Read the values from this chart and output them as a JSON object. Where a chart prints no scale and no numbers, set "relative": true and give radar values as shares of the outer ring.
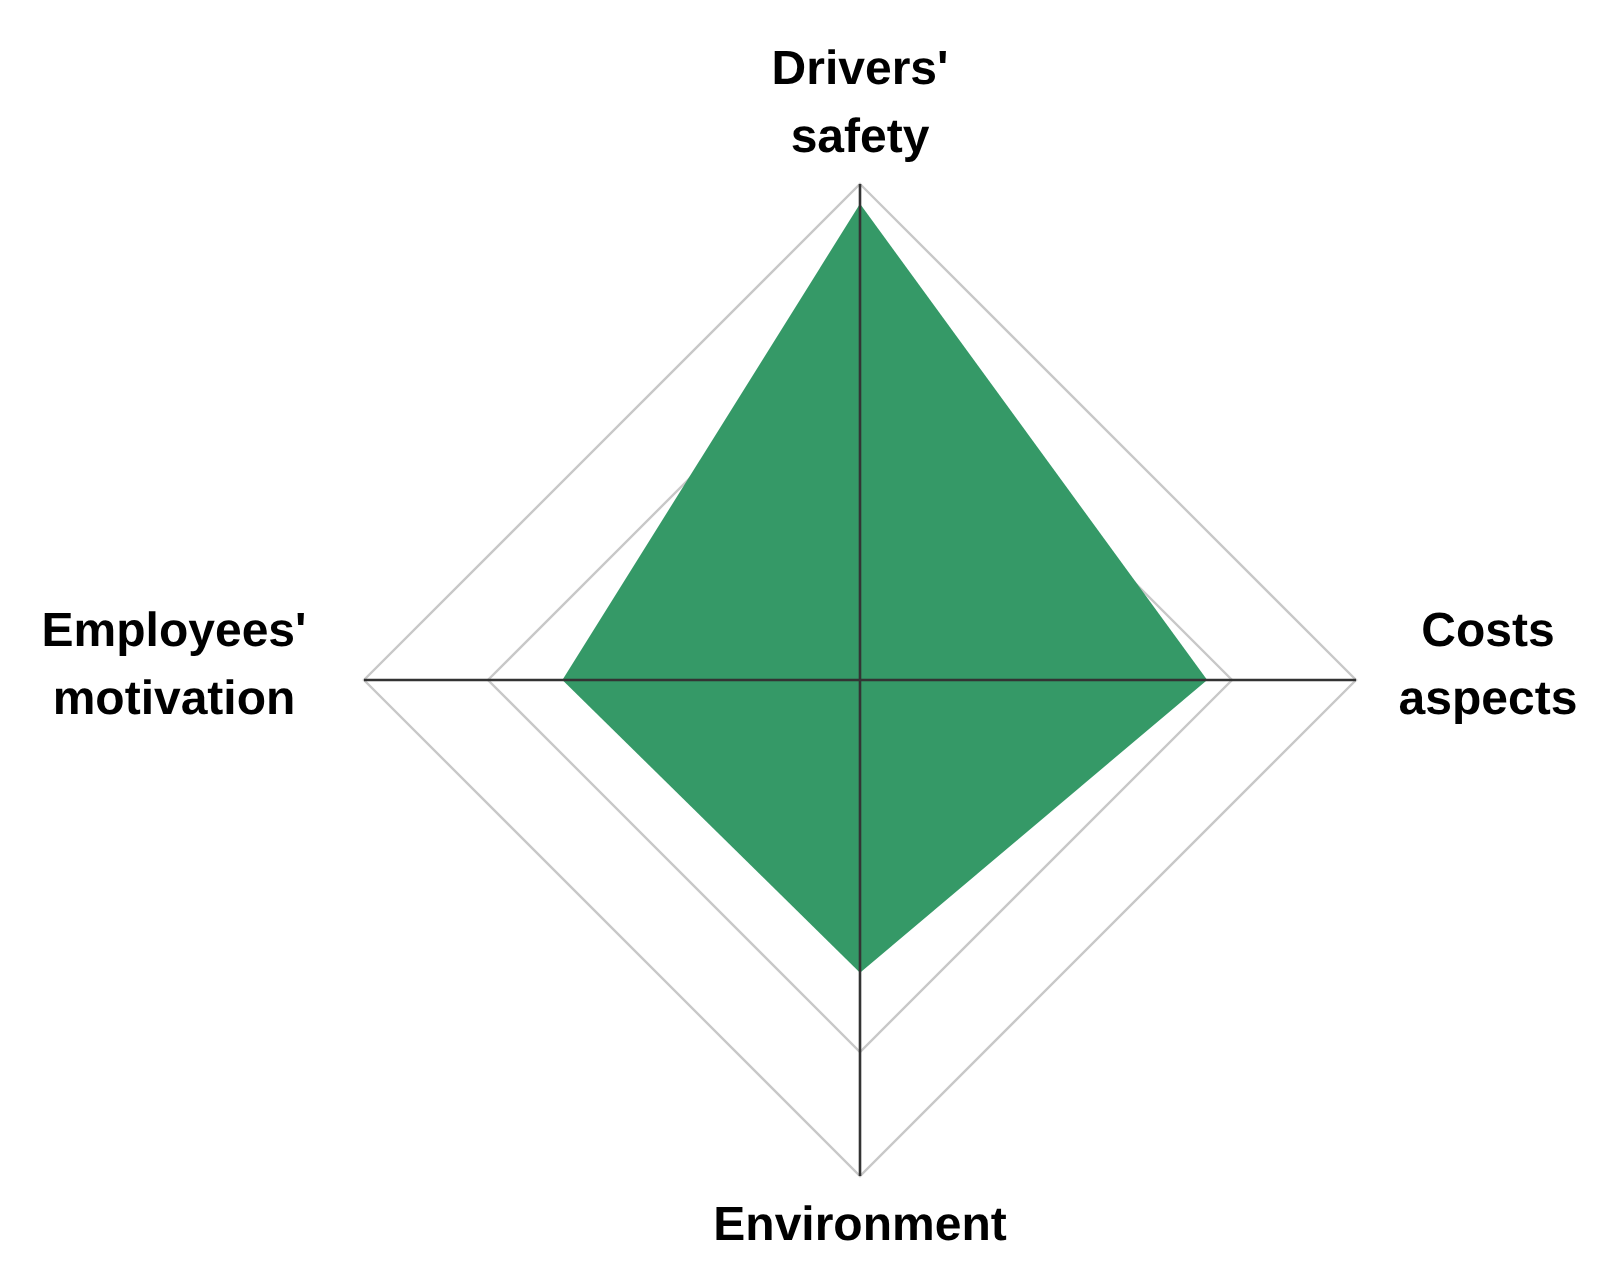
{
  "chart_data": {
    "type": "radar",
    "relative": true,
    "categories": [
      "Drivers' safety",
      "Costs aspects",
      "Environment",
      "Employees' motivation"
    ],
    "series": [
      {
        "color": "#359967",
        "values": [
          0.96,
          0.7,
          0.59,
          0.6
        ]
      }
    ],
    "grid": true
  }
}
